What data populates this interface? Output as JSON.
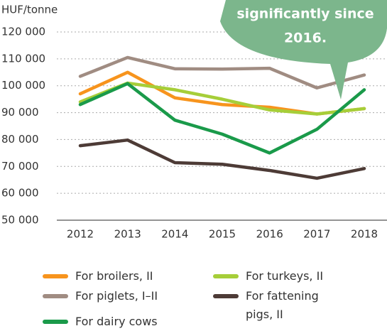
{
  "chart_data": {
    "type": "line",
    "y_axis_label": "HUF/tonne",
    "annotations": [
      "significantly since",
      "2016."
    ],
    "categories": [
      "2012",
      "2013",
      "2014",
      "2015",
      "2016",
      "2017",
      "2018"
    ],
    "series": [
      {
        "name": "For broilers, II",
        "color": "#f7941d",
        "values": [
          97000,
          105000,
          95500,
          93000,
          92000,
          89500,
          91500
        ]
      },
      {
        "name": "For turkeys, II",
        "color": "#a6ce39",
        "values": [
          94000,
          101000,
          98500,
          95000,
          91000,
          89500,
          91500
        ]
      },
      {
        "name": "For piglets, I–II",
        "color": "#a08c82",
        "values": [
          103500,
          110500,
          106300,
          106200,
          106500,
          99200,
          104000
        ]
      },
      {
        "name": "For fattening pigs, II",
        "color": "#4d3b36",
        "values": [
          77700,
          79800,
          71400,
          70800,
          68500,
          65600,
          69200
        ]
      },
      {
        "name": "For dairy cows",
        "color": "#1a9a4a",
        "values": [
          93000,
          100800,
          87200,
          82000,
          75000,
          83800,
          98500
        ]
      }
    ],
    "ylim": [
      50000,
      120000
    ],
    "yticks": [
      {
        "value": 50000,
        "label": "50 000"
      },
      {
        "value": 60000,
        "label": "60 000"
      },
      {
        "value": 70000,
        "label": "70 000"
      },
      {
        "value": 80000,
        "label": "80 000"
      },
      {
        "value": 90000,
        "label": "90 000"
      },
      {
        "value": 100000,
        "label": "100 000"
      },
      {
        "value": 110000,
        "label": "110 000"
      },
      {
        "value": 120000,
        "label": "120 000"
      }
    ],
    "grid": true
  }
}
